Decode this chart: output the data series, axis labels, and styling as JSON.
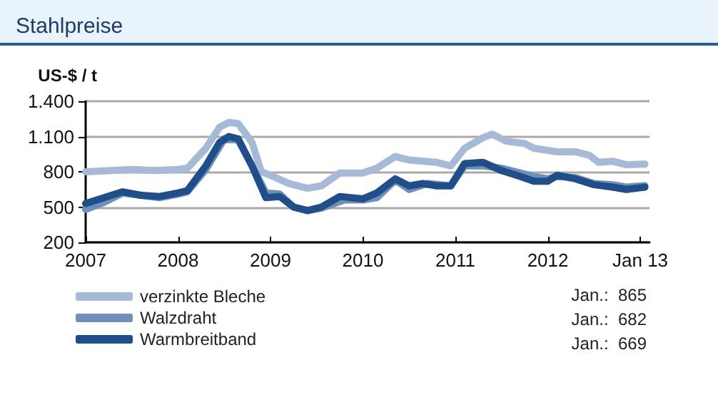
{
  "chart_data": {
    "type": "line",
    "title": "Stahlpreise",
    "ylabel": "US-$ / t",
    "xlim": [
      2007,
      2013.1
    ],
    "xticks": [
      2007,
      2008,
      2009,
      2010,
      2011,
      2012,
      {
        "value": 2013,
        "label": "Jan 13"
      }
    ],
    "ylim": [
      200,
      1400
    ],
    "yticks": [
      200,
      500,
      800,
      {
        "value": 1100,
        "label": "1.100"
      },
      {
        "value": 1400,
        "label": "1.400"
      }
    ],
    "grid": "y",
    "legend": "bottom left",
    "marker": "none",
    "line_style": "solid",
    "annotations": [
      "Jan.:  865",
      "Jan.:  682",
      "Jan.:  669"
    ],
    "series": [
      {
        "name": "verzinkte Bleche",
        "color": "#a6b9d6",
        "x": [
          2007,
          2007.5,
          2007.75,
          2008,
          2008.1,
          2008.3,
          2008.45,
          2008.55,
          2008.65,
          2008.8,
          2008.9,
          2009,
          2009.2,
          2009.4,
          2009.55,
          2009.75,
          2010,
          2010.15,
          2010.35,
          2010.5,
          2010.8,
          2010.95,
          2011.1,
          2011.3,
          2011.4,
          2011.55,
          2011.75,
          2011.85,
          2012.1,
          2012.3,
          2012.45,
          2012.55,
          2012.7,
          2012.85,
          2013.05
        ],
        "values": [
          800,
          820,
          810,
          820,
          830,
          1000,
          1180,
          1220,
          1210,
          1050,
          800,
          770,
          700,
          660,
          680,
          790,
          790,
          830,
          930,
          900,
          880,
          850,
          1000,
          1090,
          1120,
          1060,
          1040,
          1000,
          970,
          970,
          940,
          880,
          890,
          860,
          865
        ]
      },
      {
        "name": "Walzdraht",
        "color": "#6f8fba",
        "x": [
          2007,
          2007.2,
          2007.4,
          2007.6,
          2007.8,
          2008,
          2008.1,
          2008.3,
          2008.5,
          2008.65,
          2008.8,
          2008.95,
          2009.1,
          2009.25,
          2009.4,
          2009.55,
          2009.8,
          2010,
          2010.15,
          2010.35,
          2010.5,
          2010.7,
          2010.95,
          2011.1,
          2011.3,
          2011.5,
          2011.7,
          2011.85,
          2012,
          2012.1,
          2012.3,
          2012.5,
          2012.7,
          2012.85,
          2013.05
        ],
        "values": [
          480,
          540,
          620,
          600,
          580,
          610,
          630,
          820,
          1080,
          1070,
          850,
          620,
          610,
          500,
          470,
          490,
          560,
          560,
          580,
          730,
          650,
          700,
          680,
          850,
          850,
          830,
          790,
          760,
          740,
          760,
          750,
          700,
          690,
          670,
          682
        ]
      },
      {
        "name": "Warmbreitband",
        "color": "#1f4e89",
        "x": [
          2007,
          2007.2,
          2007.4,
          2007.6,
          2007.8,
          2008,
          2008.1,
          2008.3,
          2008.45,
          2008.55,
          2008.65,
          2008.8,
          2008.95,
          2009.1,
          2009.25,
          2009.4,
          2009.55,
          2009.75,
          2010,
          2010.15,
          2010.35,
          2010.5,
          2010.65,
          2010.8,
          2010.95,
          2011.1,
          2011.3,
          2011.5,
          2011.7,
          2011.85,
          2012,
          2012.1,
          2012.3,
          2012.5,
          2012.7,
          2012.85,
          2013.05
        ],
        "values": [
          530,
          580,
          630,
          600,
          590,
          620,
          640,
          850,
          1050,
          1100,
          1080,
          850,
          580,
          590,
          500,
          470,
          500,
          590,
          570,
          620,
          740,
          680,
          700,
          680,
          680,
          870,
          880,
          810,
          760,
          720,
          720,
          770,
          740,
          690,
          670,
          650,
          669
        ]
      }
    ]
  }
}
